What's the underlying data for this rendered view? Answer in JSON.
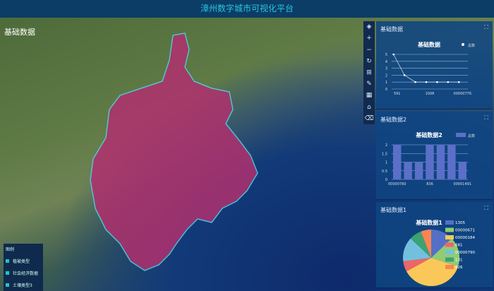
{
  "header": {
    "title": "漳州数字城市可视化平台"
  },
  "map": {
    "title": "基础数据",
    "region_color": "#b0306e",
    "border_color": "#4fd4e6"
  },
  "toolbar": {
    "icons": [
      "layers-icon",
      "zoom-in-icon",
      "zoom-out-icon",
      "refresh-icon",
      "map-icon",
      "ruler-icon",
      "area-icon",
      "print-icon",
      "clear-icon"
    ],
    "labels": [
      "◈",
      "+",
      "−",
      "↻",
      "⊞",
      "✎",
      "▦",
      "⌂",
      "⌫"
    ]
  },
  "legend": {
    "title": "图例",
    "items": [
      "植被类型",
      "社会经济数据",
      "土壤类型3"
    ],
    "color": "#27c2c9"
  },
  "panels": [
    {
      "title": "基础数据",
      "expand": "⛶"
    },
    {
      "title": "基础数据2",
      "expand": "⛶"
    },
    {
      "title": "基础数据1",
      "expand": "⛶"
    }
  ],
  "chart_data": [
    {
      "type": "line",
      "title": "基础数据",
      "legend": [
        "总数"
      ],
      "categories": [
        "591",
        "",
        "",
        "1008",
        "",
        "",
        "00000776"
      ],
      "values": [
        5,
        2,
        1,
        1,
        1,
        1,
        1
      ],
      "ylim": [
        0,
        5
      ],
      "yticks": [
        "0",
        "1",
        "2",
        "3",
        "4",
        "5"
      ],
      "color": "#c8d8f0"
    },
    {
      "type": "bar",
      "title": "基础数据2",
      "legend": [
        "总数"
      ],
      "categories": [
        "00000760",
        "",
        "",
        "836",
        "",
        "",
        "00001491"
      ],
      "values": [
        2,
        1,
        1,
        2,
        2,
        2,
        1
      ],
      "ylim": [
        0,
        2
      ],
      "yticks": [
        "0",
        "0.5",
        "1",
        "1.5",
        "2"
      ],
      "color": "#5b6fc8"
    },
    {
      "type": "pie",
      "title": "基础数据1",
      "labels": [
        "1305",
        "00000671",
        "00000184",
        "681",
        "00000790",
        "131",
        "826"
      ],
      "values": [
        13,
        17,
        37,
        6,
        14,
        7,
        6
      ],
      "colors": [
        "#5470c6",
        "#91cc75",
        "#fac858",
        "#ee6666",
        "#73c0de",
        "#3ba272",
        "#fc8452"
      ]
    }
  ]
}
